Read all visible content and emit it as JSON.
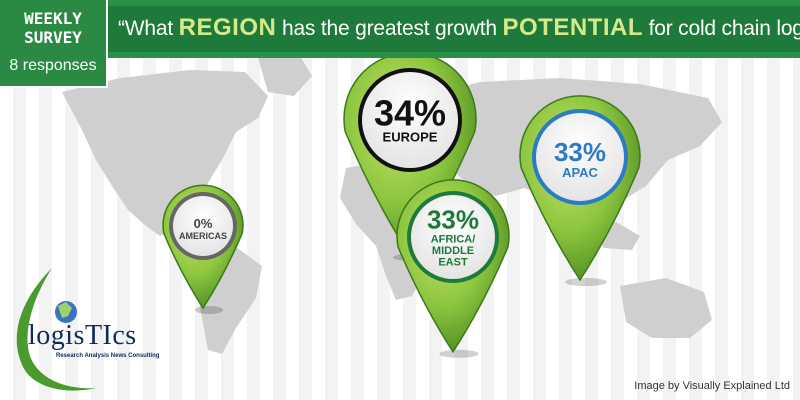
{
  "badge": {
    "line1": "WEEKLY",
    "line2": "SURVEY",
    "responses": "8 responses"
  },
  "question": {
    "parts": [
      "“What ",
      "REGION",
      " has the greatest growth ",
      "POTENTIAL",
      " for cold chain logistics?”"
    ]
  },
  "credit": "Image by Visually Explained Ltd",
  "logo": {
    "name": "logisTIcs",
    "tagline": "Research Analysis News Consulting"
  },
  "colors": {
    "header_green": "#1e7a3a",
    "pin_green": "#8cc63f",
    "pin_dark": "#3a7a1a",
    "europe_ring": "#111111",
    "apac_ring": "#2b7cc4",
    "africa_ring": "#1e7a3a",
    "americas_ring": "#666666"
  },
  "chart_data": {
    "type": "pie",
    "categories": [
      "EUROPE",
      "APAC",
      "AFRICA/ MIDDLE EAST",
      "AMERICAS"
    ],
    "values": [
      34,
      33,
      33,
      0
    ],
    "labels": [
      "34%",
      "33%",
      "33%",
      "0%"
    ],
    "unit": "%"
  }
}
